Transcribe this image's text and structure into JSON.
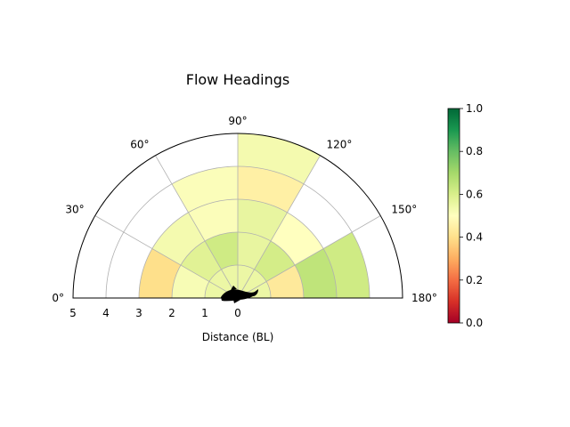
{
  "chart_data": {
    "type": "polar-bar",
    "title": "Flow Headings",
    "xlabel": "Distance (BL)",
    "theta_range_deg": [
      0,
      180
    ],
    "theta_ticks": [
      "0°",
      "30°",
      "60°",
      "90°",
      "120°",
      "150°",
      "180°"
    ],
    "r_range": [
      0,
      5
    ],
    "r_ticks": [
      "5",
      "4",
      "3",
      "2",
      "1",
      "0"
    ],
    "grid": true,
    "colormap": "RdYlGn",
    "colorbar": {
      "range": [
        0,
        1
      ],
      "ticks": [
        "0.0",
        "0.2",
        "0.4",
        "0.6",
        "0.8",
        "1.0"
      ],
      "placement": "right"
    },
    "cells": [
      {
        "r_inner": 0,
        "r_outer": 1,
        "theta_start": 0,
        "theta_end": 180,
        "value": 0.55
      },
      {
        "r_inner": 1,
        "r_outer": 2,
        "theta_start": 0,
        "theta_end": 30,
        "value": 0.52
      },
      {
        "r_inner": 1,
        "r_outer": 2,
        "theta_start": 30,
        "theta_end": 60,
        "value": 0.58
      },
      {
        "r_inner": 1,
        "r_outer": 2,
        "theta_start": 60,
        "theta_end": 90,
        "value": 0.62
      },
      {
        "r_inner": 1,
        "r_outer": 2,
        "theta_start": 90,
        "theta_end": 120,
        "value": 0.56
      },
      {
        "r_inner": 1,
        "r_outer": 2,
        "theta_start": 120,
        "theta_end": 150,
        "value": 0.61
      },
      {
        "r_inner": 1,
        "r_outer": 2,
        "theta_start": 150,
        "theta_end": 180,
        "value": 0.43
      },
      {
        "r_inner": 2,
        "r_outer": 3,
        "theta_start": 0,
        "theta_end": 30,
        "value": 0.4
      },
      {
        "r_inner": 2,
        "r_outer": 3,
        "theta_start": 30,
        "theta_end": 60,
        "value": 0.53
      },
      {
        "r_inner": 2,
        "r_outer": 3,
        "theta_start": 60,
        "theta_end": 90,
        "value": 0.51
      },
      {
        "r_inner": 2,
        "r_outer": 3,
        "theta_start": 90,
        "theta_end": 120,
        "value": 0.56
      },
      {
        "r_inner": 2,
        "r_outer": 3,
        "theta_start": 120,
        "theta_end": 150,
        "value": 0.5
      },
      {
        "r_inner": 2,
        "r_outer": 3,
        "theta_start": 150,
        "theta_end": 180,
        "value": 0.65
      },
      {
        "r_inner": 3,
        "r_outer": 4,
        "theta_start": 60,
        "theta_end": 90,
        "value": 0.51
      },
      {
        "r_inner": 3,
        "r_outer": 4,
        "theta_start": 90,
        "theta_end": 120,
        "value": 0.45
      },
      {
        "r_inner": 3,
        "r_outer": 4,
        "theta_start": 150,
        "theta_end": 180,
        "value": 0.62
      },
      {
        "r_inner": 4,
        "r_outer": 5,
        "theta_start": 90,
        "theta_end": 120,
        "value": 0.53
      }
    ]
  }
}
